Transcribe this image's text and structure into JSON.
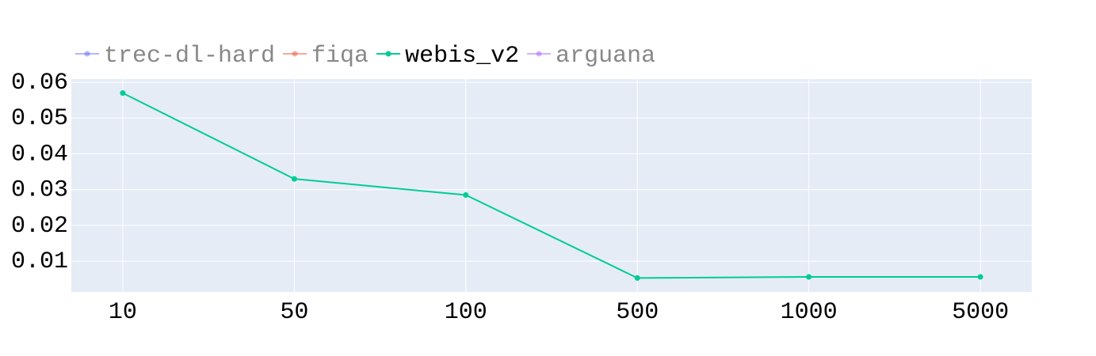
{
  "chart_data": {
    "type": "line",
    "categories": [
      "10",
      "50",
      "100",
      "500",
      "1000",
      "5000"
    ],
    "series": [
      {
        "name": "trec-dl-hard",
        "color": "#636efa",
        "visible": false,
        "values": [
          null,
          null,
          null,
          null,
          null,
          null
        ]
      },
      {
        "name": "fiqa",
        "color": "#ef553b",
        "visible": false,
        "values": [
          null,
          null,
          null,
          null,
          null,
          null
        ]
      },
      {
        "name": "webis_v2",
        "color": "#00cc96",
        "visible": true,
        "values": [
          0.057,
          0.033,
          0.0285,
          0.0053,
          0.0056,
          0.0056
        ]
      },
      {
        "name": "arguana",
        "color": "#ab63fa",
        "visible": false,
        "values": [
          null,
          null,
          null,
          null,
          null,
          null
        ]
      }
    ],
    "ylim": [
      0.0014,
      0.0609
    ],
    "yticks": [
      0.01,
      0.02,
      0.03,
      0.04,
      0.05,
      0.06
    ],
    "grid": true,
    "legend": "top"
  }
}
